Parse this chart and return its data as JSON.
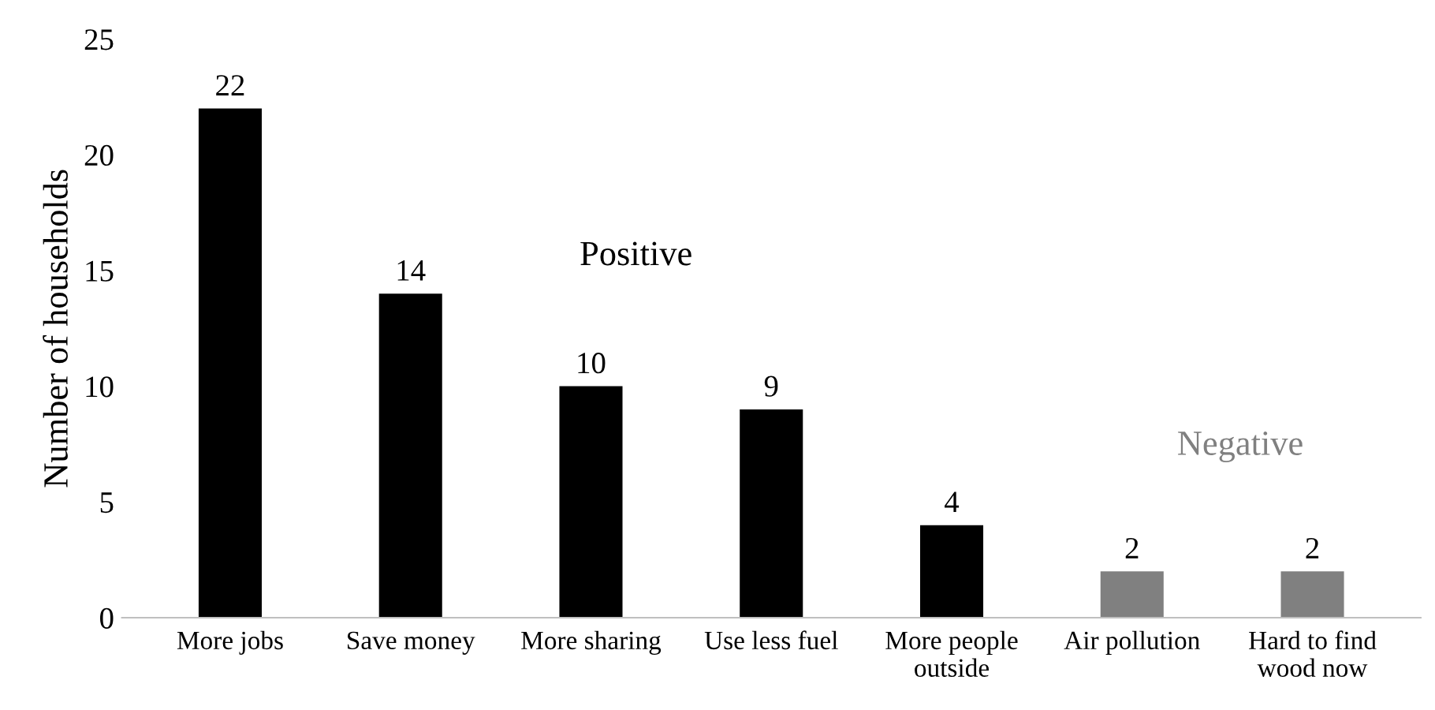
{
  "chart_data": {
    "type": "bar",
    "ylabel": "Number of households",
    "categories": [
      "More jobs",
      "Save money",
      "More sharing",
      "Use less fuel",
      "More people\noutside",
      "Air pollution",
      "Hard to find\nwood now"
    ],
    "values": [
      22,
      14,
      10,
      9,
      4,
      2,
      2
    ],
    "colors": [
      "#000000",
      "#000000",
      "#000000",
      "#000000",
      "#000000",
      "#808080",
      "#808080"
    ],
    "ylim": [
      0,
      25
    ],
    "yticks": [
      0,
      5,
      10,
      15,
      20,
      25
    ],
    "grid": false,
    "data_labels": true,
    "annotations": [
      "Positive",
      "Negative"
    ]
  }
}
